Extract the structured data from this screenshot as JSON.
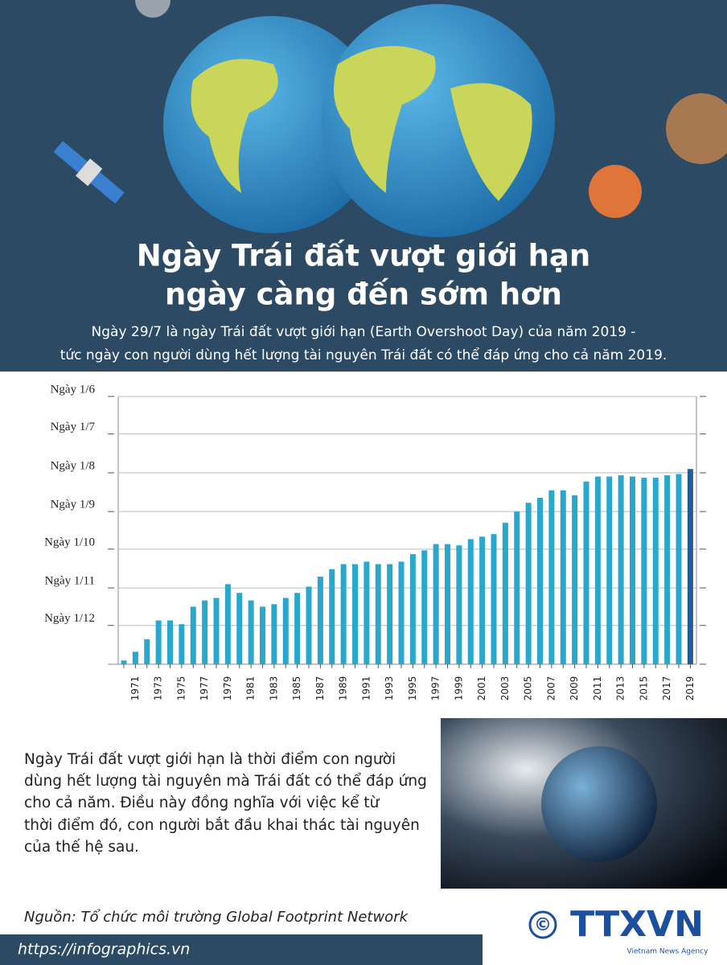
{
  "header": {
    "title": [
      "Ngày Trái đất vượt giới hạn",
      "ngày càng đến sớm hơn"
    ],
    "subtitle": [
      "Ngày 29/7 là ngày Trái đất vượt giới hạn (Earth Overshoot Day) của năm 2019 -",
      "tức ngày con người dùng hết lượng tài nguyên Trái đất có thể đáp ứng cho cả năm 2019."
    ]
  },
  "chart_data": {
    "type": "bar",
    "categories": [
      null,
      "1971",
      null,
      "1973",
      null,
      "1975",
      null,
      "1977",
      null,
      "1979",
      null,
      "1981",
      null,
      "1983",
      null,
      "1985",
      null,
      "1987",
      null,
      "1989",
      null,
      "1991",
      null,
      "1993",
      null,
      "1995",
      null,
      "1997",
      null,
      "1999",
      null,
      "2001",
      null,
      "2003",
      null,
      "2005",
      null,
      "2007",
      null,
      "2009",
      null,
      "2011",
      null,
      "2013",
      null,
      "2015",
      null,
      "2017",
      null,
      "2019"
    ],
    "values": [
      363,
      356,
      346,
      331,
      331,
      334,
      320,
      315,
      313,
      302,
      309,
      315,
      320,
      318,
      313,
      309,
      304,
      296,
      290,
      286,
      286,
      284,
      286,
      286,
      284,
      278,
      275,
      270,
      270,
      271,
      266,
      264,
      262,
      253,
      244,
      237,
      233,
      227,
      227,
      231,
      220,
      216,
      216,
      215,
      216,
      217,
      217,
      215,
      214,
      210
    ],
    "colors": [
      "#2aa7cd",
      "#2aa7cd",
      "#2aa7cd",
      "#2aa7cd",
      "#2aa7cd",
      "#2aa7cd",
      "#2aa7cd",
      "#2aa7cd",
      "#2aa7cd",
      "#2aa7cd",
      "#2aa7cd",
      "#2aa7cd",
      "#2aa7cd",
      "#2aa7cd",
      "#2aa7cd",
      "#2aa7cd",
      "#2aa7cd",
      "#2aa7cd",
      "#2aa7cd",
      "#2aa7cd",
      "#2aa7cd",
      "#2aa7cd",
      "#2aa7cd",
      "#2aa7cd",
      "#2aa7cd",
      "#2aa7cd",
      "#2aa7cd",
      "#2aa7cd",
      "#2aa7cd",
      "#2aa7cd",
      "#2aa7cd",
      "#2aa7cd",
      "#2aa7cd",
      "#2aa7cd",
      "#2aa7cd",
      "#2aa7cd",
      "#2aa7cd",
      "#2aa7cd",
      "#2aa7cd",
      "#2aa7cd",
      "#2aa7cd",
      "#2aa7cd",
      "#2aa7cd",
      "#2aa7cd",
      "#2aa7cd",
      "#2aa7cd",
      "#2aa7cd",
      "#2aa7cd",
      "#2aa7cd",
      "#1d5c9e"
    ],
    "ylim": [
      366,
      152
    ],
    "yticks": [
      {
        "value": 152,
        "label": "Ngày 1/6"
      },
      {
        "value": 182,
        "label": "Ngày 1/7"
      },
      {
        "value": 213,
        "label": "Ngày 1/8"
      },
      {
        "value": 244,
        "label": "Ngày 1/9"
      },
      {
        "value": 274,
        "label": "Ngày 1/10"
      },
      {
        "value": 305,
        "label": "Ngày 1/11"
      },
      {
        "value": 335,
        "label": "Ngày 1/12"
      }
    ],
    "grid": true
  },
  "body": [
    "Ngày Trái đất vượt giới hạn là thời điểm con người",
    "dùng hết lượng tài nguyên mà Trái đất có thể đáp ứng",
    "cho cả năm. Điều này đồng nghĩa với việc kể từ",
    "thời điểm đó, con người bắt đầu khai thác tài nguyên",
    "của thế hệ sau."
  ],
  "source": "Nguồn: Tổ chức môi trường Global Footprint Network",
  "footer": {
    "url": "https://infographics.vn",
    "copyright": "©",
    "logo": "TTXVN",
    "agency": "Vietnam News Agency"
  }
}
